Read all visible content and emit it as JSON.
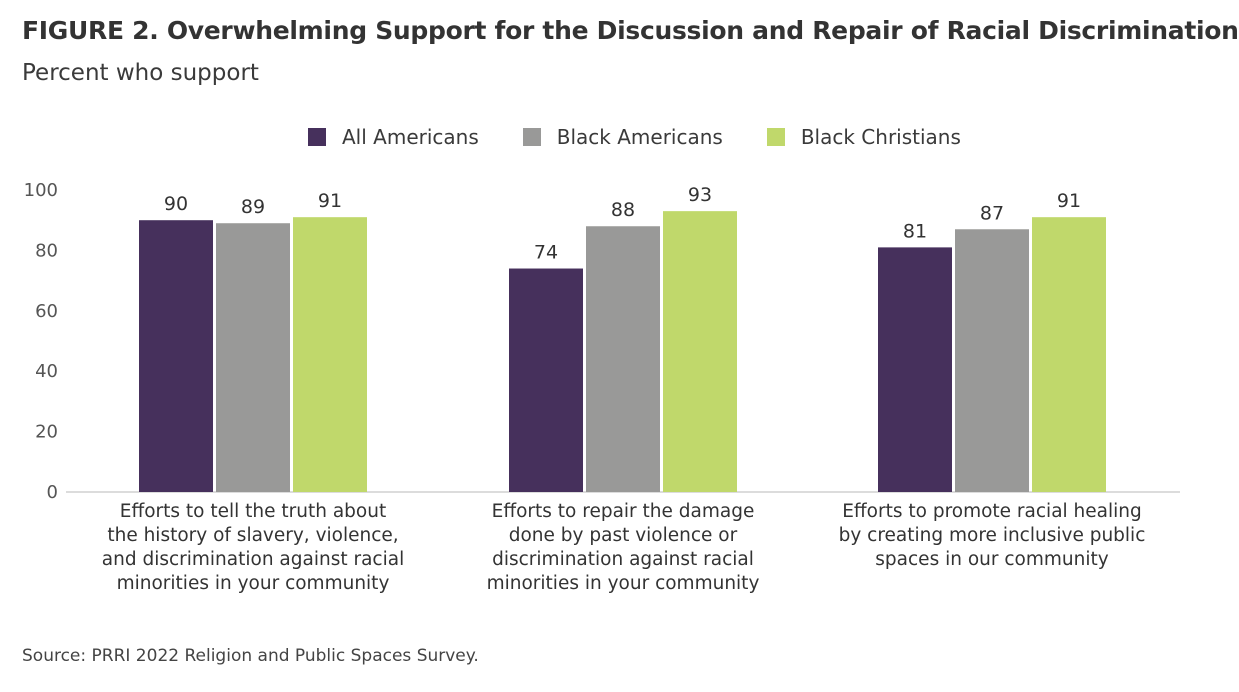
{
  "title": "FIGURE 2.  Overwhelming Support for the Discussion and Repair of Racial Discrimination",
  "subtitle": "Percent who support",
  "source": "Source: PRRI 2022 Religion and Public Spaces Survey.",
  "chart_data": {
    "type": "bar",
    "categories": [
      "Efforts to tell the truth about the history of slavery, violence, and discrimination against racial minorities in your community",
      "Efforts to repair the damage done by past violence or discrimination against racial minorities in your community",
      "Efforts to promote racial healing by creating more inclusive public spaces in our community"
    ],
    "category_lines": [
      [
        "Efforts to tell the truth about",
        "the history of slavery, violence,",
        "and discrimination against racial",
        "minorities in your community"
      ],
      [
        "Efforts to repair the damage",
        "done by past violence or",
        "discrimination against racial",
        "minorities in your community"
      ],
      [
        "Efforts to promote racial healing",
        "by creating more inclusive public",
        "spaces in our community"
      ]
    ],
    "series": [
      {
        "name": "All Americans",
        "color": "#46305c",
        "values": [
          90,
          74,
          81
        ]
      },
      {
        "name": "Black Americans",
        "color": "#999998",
        "values": [
          89,
          88,
          87
        ]
      },
      {
        "name": "Black Christians",
        "color": "#c0d86b",
        "values": [
          91,
          93,
          91
        ]
      }
    ],
    "ylim": [
      0,
      100
    ],
    "yticks": [
      0,
      20,
      40,
      60,
      80,
      100
    ],
    "legend": "top-center",
    "grid": false
  }
}
